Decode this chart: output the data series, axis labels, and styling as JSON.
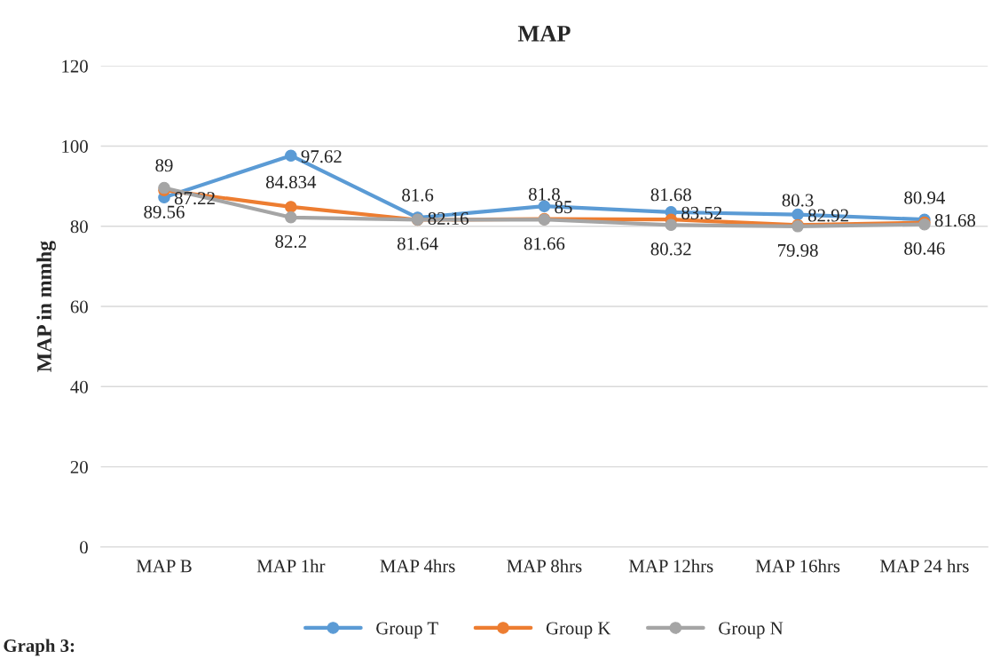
{
  "chart_data": {
    "type": "line",
    "title": "MAP",
    "ylabel": "MAP in mmhg",
    "categories": [
      "MAP B",
      "MAP 1hr",
      "MAP 4hrs",
      "MAP 8hrs",
      "MAP 12hrs",
      "MAP 16hrs",
      "MAP 24 hrs"
    ],
    "series": [
      {
        "name": "Group T",
        "color": "#5b9bd5",
        "values": [
          87.22,
          97.62,
          82.16,
          85,
          83.52,
          82.92,
          81.68
        ]
      },
      {
        "name": "Group K",
        "color": "#ed7d31",
        "values": [
          89,
          84.834,
          81.6,
          81.8,
          81.68,
          80.3,
          80.94
        ]
      },
      {
        "name": "Group N",
        "color": "#a5a5a5",
        "values": [
          89.56,
          82.2,
          81.64,
          81.66,
          80.32,
          79.98,
          80.46
        ]
      }
    ],
    "ylim": [
      0,
      120
    ],
    "yticks": [
      0,
      20,
      40,
      60,
      80,
      100,
      120
    ],
    "grid": "y",
    "legend": "bottom",
    "marker": "circle",
    "line_style": "solid",
    "data_labels": true,
    "annotations": [
      "Graph 3:"
    ]
  }
}
